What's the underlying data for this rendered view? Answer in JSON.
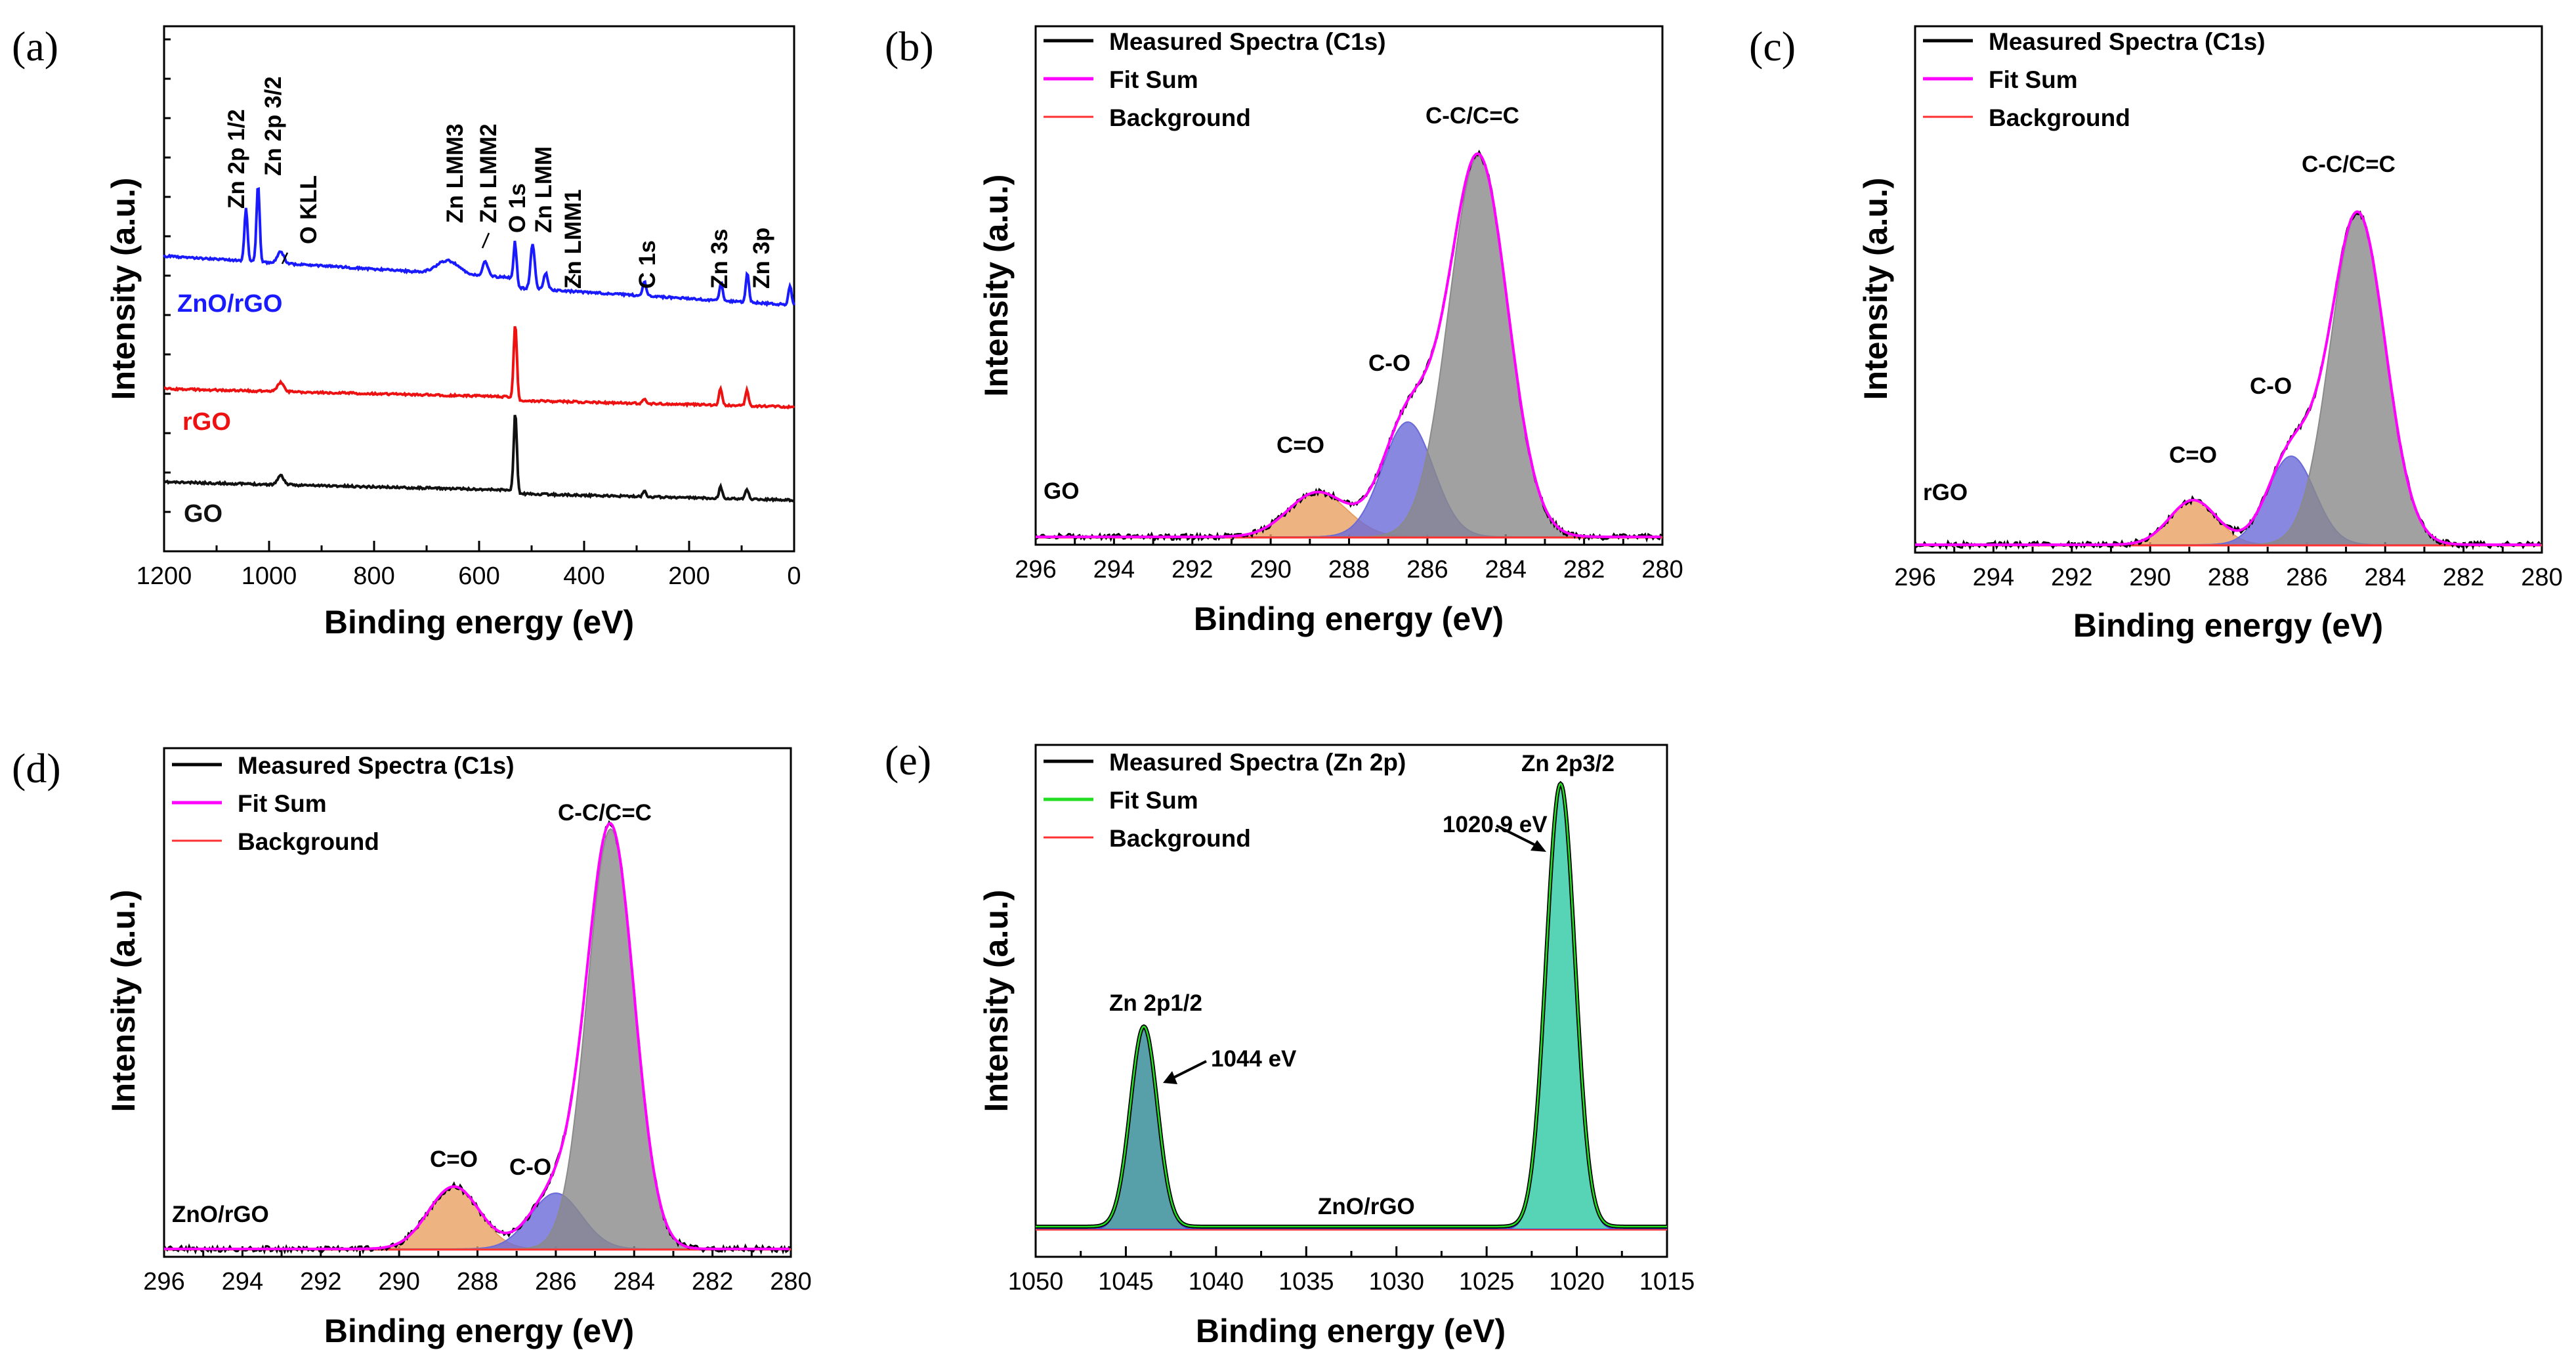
{
  "chart_data": [
    {
      "panel": "(a)",
      "type": "line",
      "xlabel": "Binding energy (eV)",
      "ylabel": "Intensity (a.u.)",
      "xlim": [
        1200,
        0
      ],
      "xticks": [
        "1200",
        "1000",
        "800",
        "600",
        "400",
        "200",
        "0"
      ],
      "series": [
        {
          "name": "ZnO/rGO",
          "color": "#1a1aff"
        },
        {
          "name": "rGO",
          "color": "#ee1111"
        },
        {
          "name": "GO",
          "color": "#111111"
        }
      ],
      "peaks": [
        {
          "label": "Zn 2p 1/2",
          "x": 1044
        },
        {
          "label": "Zn 2p 3/2",
          "x": 1021
        },
        {
          "label": "O KLL",
          "x": 978
        },
        {
          "label": "Zn LMM3",
          "x": 588
        },
        {
          "label": "Zn LMM2",
          "x": 575
        },
        {
          "label": "O 1s",
          "x": 531
        },
        {
          "label": "Zn LMM",
          "x": 498
        },
        {
          "label": "Zn LMM1",
          "x": 473
        },
        {
          "label": "C 1s",
          "x": 285
        },
        {
          "label": "Zn 3s",
          "x": 139
        },
        {
          "label": "Zn 3p",
          "x": 89
        }
      ]
    },
    {
      "panel": "(b)",
      "type": "line",
      "xlabel": "Binding energy (eV)",
      "ylabel": "Intensity (a.u.)",
      "xlim": [
        296,
        280
      ],
      "xticks": [
        "296",
        "294",
        "292",
        "290",
        "288",
        "286",
        "284",
        "282",
        "280"
      ],
      "legend": [
        "Measured Spectra (C1s)",
        "Fit Sum",
        "Background"
      ],
      "sample_label": "GO",
      "components": [
        {
          "label": "C=O",
          "center": 288.8,
          "color": "#e8a060"
        },
        {
          "label": "C-O",
          "center": 286.5,
          "color": "#6a6ad8"
        },
        {
          "label": "C-C/C=C",
          "center": 284.7,
          "color": "#8a8a8a"
        }
      ]
    },
    {
      "panel": "(c)",
      "type": "line",
      "xlabel": "Binding energy (eV)",
      "ylabel": "Intensity (a.u.)",
      "xlim": [
        296,
        280
      ],
      "xticks": [
        "296",
        "294",
        "292",
        "290",
        "288",
        "286",
        "284",
        "282",
        "280"
      ],
      "legend": [
        "Measured Spectra (C1s)",
        "Fit Sum",
        "Background"
      ],
      "sample_label": "rGO",
      "components": [
        {
          "label": "C=O",
          "center": 288.9,
          "color": "#e8a060"
        },
        {
          "label": "C-O",
          "center": 286.4,
          "color": "#6a6ad8"
        },
        {
          "label": "C-C/C=C",
          "center": 284.7,
          "color": "#8a8a8a"
        }
      ]
    },
    {
      "panel": "(d)",
      "type": "line",
      "xlabel": "Binding energy (eV)",
      "ylabel": "Intensity (a.u.)",
      "xlim": [
        296,
        280
      ],
      "xticks": [
        "296",
        "294",
        "292",
        "290",
        "288",
        "286",
        "284",
        "282",
        "280"
      ],
      "legend": [
        "Measured Spectra (C1s)",
        "Fit Sum",
        "Background"
      ],
      "sample_label": "ZnO/rGO",
      "components": [
        {
          "label": "C=O",
          "center": 288.6,
          "color": "#e8a060"
        },
        {
          "label": "C-O",
          "center": 286.0,
          "color": "#6a6ad8"
        },
        {
          "label": "C-C/C=C",
          "center": 284.6,
          "color": "#8a8a8a"
        }
      ]
    },
    {
      "panel": "(e)",
      "type": "line",
      "xlabel": "Binding energy (eV)",
      "ylabel": "Intensity (a.u.)",
      "xlim": [
        1050,
        1015
      ],
      "xticks": [
        "1050",
        "1045",
        "1040",
        "1035",
        "1030",
        "1025",
        "1020",
        "1015"
      ],
      "legend": [
        "Measured Spectra (Zn 2p)",
        "Fit Sum",
        "Background"
      ],
      "sample_label": "ZnO/rGO",
      "components": [
        {
          "label": "Zn 2p1/2",
          "center": 1044,
          "annotation": "1044 eV",
          "color": "#3a9a9a"
        },
        {
          "label": "Zn 2p3/2",
          "center": 1020.9,
          "annotation": "1020.9 eV",
          "color": "#3acca8"
        }
      ]
    }
  ],
  "colors": {
    "fit_sum": "#ff00ff",
    "background": "#ff3030",
    "measured": "#000000",
    "fit_sum_e": "#22dd22"
  }
}
